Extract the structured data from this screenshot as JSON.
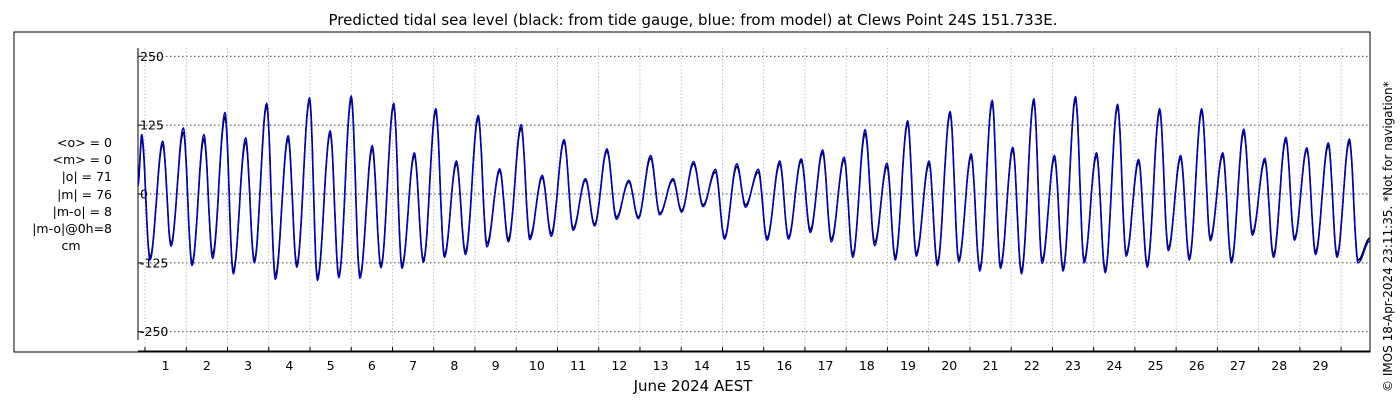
{
  "chart_data": {
    "type": "line",
    "title": "Predicted tidal sea level (black: from tide gauge, blue: from model) at Clews Point 24S 151.733E.",
    "xlabel": "June 2024 AEST",
    "ylabel": "",
    "xlim": [
      0.33,
      30.2
    ],
    "ylim": [
      -265,
      265
    ],
    "y_ticks": [
      250,
      125,
      0,
      -125,
      -250
    ],
    "y_tick_labels": [
      "250",
      "125",
      "0",
      "-125",
      "-250"
    ],
    "x_ticks": [
      1,
      2,
      3,
      4,
      5,
      6,
      7,
      8,
      9,
      10,
      11,
      12,
      13,
      14,
      15,
      16,
      17,
      18,
      19,
      20,
      21,
      22,
      23,
      24,
      25,
      26,
      27,
      28,
      29
    ],
    "x_tick_labels": [
      "1",
      "2",
      "3",
      "4",
      "5",
      "6",
      "7",
      "8",
      "9",
      "10",
      "11",
      "12",
      "13",
      "14",
      "15",
      "16",
      "17",
      "18",
      "19",
      "20",
      "21",
      "22",
      "23",
      "24",
      "25",
      "26",
      "27",
      "28",
      "29"
    ],
    "grid": true,
    "series": [
      {
        "color": "#000000",
        "values_note_key": "gauge",
        "x": [
          0.33,
          0.42,
          0.62,
          0.93,
          1.13,
          1.43,
          1.64,
          1.93,
          2.14,
          2.44,
          2.64,
          2.94,
          3.15,
          3.45,
          3.66,
          3.97,
          4.18,
          4.49,
          4.68,
          4.99,
          5.2,
          5.5,
          5.71,
          6.01,
          6.22,
          6.53,
          6.73,
          7.03,
          7.25,
          7.55,
          7.76,
          8.05,
          8.27,
          8.58,
          8.79,
          9.1,
          9.31,
          9.62,
          9.83,
          10.13,
          10.35,
          10.66,
          10.88,
          11.18,
          11.4,
          11.7,
          11.93,
          12.23,
          12.46,
          12.76,
          12.98,
          13.3,
          13.51,
          13.8,
          14.03,
          14.33,
          14.55,
          14.85,
          15.06,
          15.37,
          15.58,
          15.89,
          16.1,
          16.41,
          16.63,
          16.93,
          17.14,
          17.45,
          17.66,
          17.96,
          18.19,
          18.49,
          18.69,
          18.99,
          19.2,
          19.51,
          19.71,
          20.02,
          20.23,
          20.53,
          20.74,
          21.04,
          21.24,
          21.54,
          21.75,
          22.05,
          22.25,
          22.55,
          22.76,
          23.06,
          23.27,
          23.57,
          23.78,
          24.08,
          24.29,
          24.59,
          24.8,
          25.1,
          25.31,
          25.61,
          25.82,
          26.12,
          26.33,
          26.63,
          26.84,
          27.14,
          27.35,
          27.65,
          27.86,
          28.16,
          28.37,
          28.67,
          28.88,
          29.19,
          29.4,
          29.7,
          29.91,
          30.2
        ],
        "y": [
          20,
          100,
          -115,
          90,
          -90,
          112,
          -125,
          100,
          -110,
          140,
          -140,
          95,
          -120,
          160,
          -148,
          100,
          -128,
          170,
          -152,
          110,
          -148,
          172,
          -148,
          82,
          -130,
          160,
          -130,
          70,
          -120,
          150,
          -110,
          55,
          -105,
          138,
          -90,
          42,
          -82,
          120,
          -78,
          30,
          -72,
          95,
          -62,
          25,
          -55,
          78,
          -42,
          22,
          -42,
          65,
          -35,
          25,
          -30,
          55,
          -20,
          40,
          -78,
          50,
          -20,
          40,
          -80,
          55,
          -78,
          60,
          -65,
          75,
          -82,
          62,
          -110,
          110,
          -88,
          50,
          -115,
          128,
          -108,
          55,
          -125,
          145,
          -118,
          68,
          -135,
          165,
          -130,
          80,
          -140,
          168,
          -120,
          65,
          -135,
          172,
          -120,
          70,
          -138,
          158,
          -108,
          58,
          -128,
          150,
          -98,
          65,
          -115,
          150,
          -80,
          70,
          -120,
          112,
          -70,
          60,
          -110,
          98,
          -80,
          80,
          -105,
          88,
          -110,
          95,
          -120,
          -80
        ]
      },
      {
        "color": "#0000cc",
        "x": [
          0.33,
          0.42,
          0.62,
          0.93,
          1.13,
          1.43,
          1.64,
          1.93,
          2.14,
          2.44,
          2.64,
          2.94,
          3.15,
          3.45,
          3.66,
          3.97,
          4.18,
          4.49,
          4.68,
          4.99,
          5.2,
          5.5,
          5.71,
          6.01,
          6.22,
          6.53,
          6.73,
          7.03,
          7.25,
          7.55,
          7.76,
          8.05,
          8.27,
          8.58,
          8.79,
          9.1,
          9.31,
          9.62,
          9.83,
          10.13,
          10.35,
          10.66,
          10.88,
          11.18,
          11.4,
          11.7,
          11.93,
          12.23,
          12.46,
          12.76,
          12.98,
          13.3,
          13.51,
          13.8,
          14.03,
          14.33,
          14.55,
          14.85,
          15.06,
          15.37,
          15.58,
          15.89,
          16.1,
          16.41,
          16.63,
          16.93,
          17.14,
          17.45,
          17.66,
          17.96,
          18.19,
          18.49,
          18.69,
          18.99,
          19.2,
          19.51,
          19.71,
          20.02,
          20.23,
          20.53,
          20.74,
          21.04,
          21.24,
          21.54,
          21.75,
          22.05,
          22.25,
          22.55,
          22.76,
          23.06,
          23.27,
          23.57,
          23.78,
          24.08,
          24.29,
          24.59,
          24.8,
          25.1,
          25.31,
          25.61,
          25.82,
          26.12,
          26.33,
          26.63,
          26.84,
          27.14,
          27.35,
          27.65,
          27.86,
          28.16,
          28.37,
          28.67,
          28.88,
          29.19,
          29.4,
          29.7,
          29.91,
          30.2
        ],
        "y": [
          15,
          108,
          -120,
          96,
          -95,
          120,
          -130,
          108,
          -117,
          148,
          -145,
          102,
          -125,
          165,
          -155,
          106,
          -133,
          175,
          -157,
          115,
          -152,
          178,
          -153,
          88,
          -134,
          165,
          -135,
          75,
          -124,
          155,
          -115,
          60,
          -110,
          143,
          -96,
          46,
          -87,
          126,
          -83,
          34,
          -77,
          99,
          -66,
          28,
          -58,
          82,
          -46,
          25,
          -45,
          70,
          -38,
          28,
          -33,
          59,
          -23,
          45,
          -82,
          55,
          -24,
          45,
          -84,
          60,
          -82,
          64,
          -70,
          80,
          -87,
          67,
          -115,
          117,
          -94,
          56,
          -120,
          133,
          -113,
          60,
          -130,
          150,
          -123,
          73,
          -140,
          170,
          -135,
          85,
          -145,
          173,
          -126,
          70,
          -140,
          177,
          -125,
          75,
          -143,
          163,
          -113,
          63,
          -133,
          155,
          -103,
          70,
          -120,
          155,
          -85,
          75,
          -125,
          118,
          -75,
          65,
          -115,
          103,
          -84,
          84,
          -110,
          93,
          -115,
          100,
          -125,
          -85
        ]
      }
    ]
  },
  "stats": {
    "mean_obs": "<o> = 0",
    "mean_model": "<m> = 0",
    "abs_obs": "|o| = 71",
    "abs_model": "|m| = 76",
    "abs_diff": "|m-o| = 8",
    "abs_diff_0h": "|m-o|@0h=8",
    "unit": "cm"
  },
  "side_note": "© IMOS 18-Apr-2024 23:11:35. *Not for navigation*"
}
